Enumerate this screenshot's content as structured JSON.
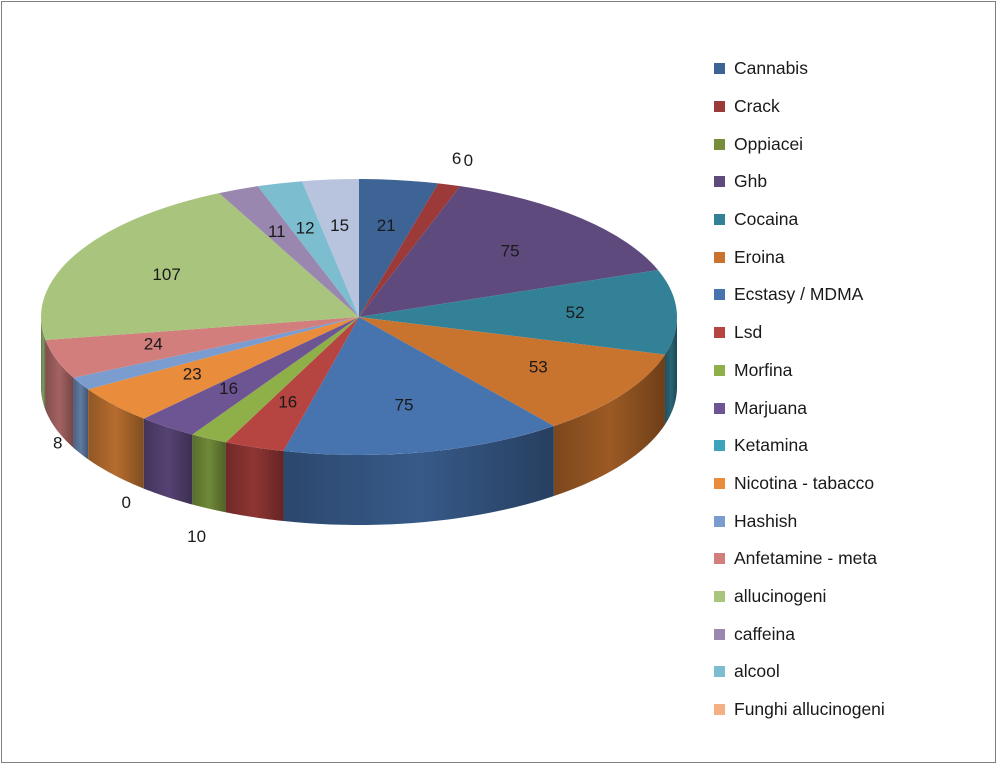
{
  "chart_data": {
    "type": "pie",
    "categories": [
      "Cannabis",
      "Crack",
      "Oppiacei",
      "Ghb",
      "Cocaina",
      "Eroina",
      "Ecstasy / MDMA",
      "Lsd",
      "Morfina",
      "Marjuana",
      "Ketamina",
      "Nicotina - tabacco",
      "Hashish",
      "Anfetamine - meta",
      "allucinogeni",
      "caffeina",
      "alcool",
      "Funghi allucinogeni"
    ],
    "values": [
      21,
      6,
      0,
      75,
      52,
      53,
      75,
      16,
      10,
      16,
      0,
      23,
      8,
      24,
      107,
      11,
      12,
      15
    ],
    "data_labels": [
      "21",
      "6",
      "0",
      "75",
      "52",
      "53",
      "75",
      "16",
      "10",
      "16",
      "0",
      "23",
      "8",
      "24",
      "107",
      "11",
      "12",
      "15"
    ],
    "colors": [
      "#3E6395",
      "#9B3A38",
      "#768E39",
      "#5F4A7E",
      "#338197",
      "#C8732E",
      "#4773AF",
      "#B64441",
      "#8FAF48",
      "#6D5593",
      "#3DA2BC",
      "#E98C3B",
      "#7A9CCF",
      "#D27E7D",
      "#A8C47D",
      "#9A87B0",
      "#7DBDD0",
      "#B8C3DD"
    ],
    "legend_colors": [
      "#3E6395",
      "#9B3A38",
      "#768E39",
      "#5F4A7E",
      "#338197",
      "#C8732E",
      "#4773AF",
      "#B64441",
      "#8FAF48",
      "#6D5593",
      "#3DA2BC",
      "#E98C3B",
      "#7A9CCF",
      "#D27E7D",
      "#A8C47D",
      "#9A87B0",
      "#7DBDD0",
      "#F4AF83"
    ],
    "style": "3d-pie",
    "legend_position": "right",
    "title": "",
    "xlabel": "",
    "ylabel": ""
  }
}
